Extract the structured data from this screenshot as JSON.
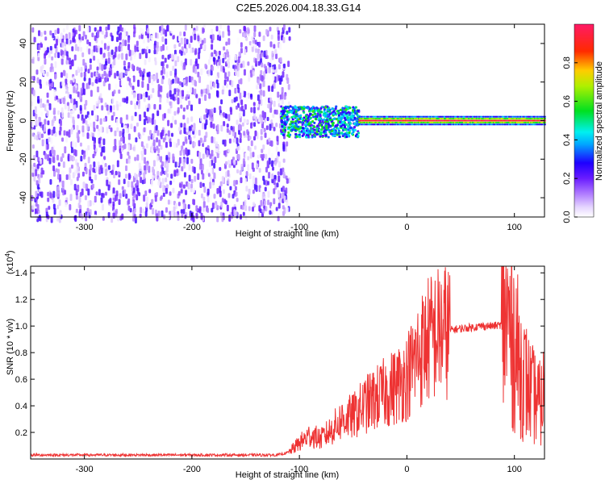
{
  "title": "C2E5.2026.004.18.33.G14",
  "chart_data": [
    {
      "type": "heatmap",
      "xlabel": "Height of straight line (km)",
      "ylabel": "Frequency (Hz)",
      "xlim": [
        -350,
        128
      ],
      "ylim": [
        -50,
        50
      ],
      "x_ticks": [
        -300,
        -200,
        -100,
        0,
        100
      ],
      "x_tick_labels": [
        "-300",
        "-200",
        "-100",
        "0",
        "100"
      ],
      "y_ticks": [
        -40,
        -20,
        0,
        20,
        40
      ],
      "y_tick_labels": [
        "-40",
        "-20",
        "0",
        "20",
        "40"
      ],
      "colorbar": {
        "label": "Normalized spectral amplitude",
        "range": [
          0,
          1
        ],
        "ticks": [
          0.0,
          0.2,
          0.4,
          0.6,
          0.8
        ],
        "tick_labels": [
          "0.0",
          "0.2",
          "0.4",
          "0.6",
          "0.8"
        ]
      },
      "regions": [
        {
          "name": "noise",
          "x_range": [
            -350,
            -110
          ],
          "f_range": [
            -50,
            50
          ],
          "amplitude_range": [
            0.0,
            0.25
          ]
        },
        {
          "name": "signal-onset",
          "x_range": [
            -118,
            -45
          ],
          "f_center": 0,
          "f_halfwidth": 8,
          "amplitude_range": [
            0.2,
            0.6
          ]
        },
        {
          "name": "signal-steady",
          "x_range": [
            -45,
            128
          ],
          "f_center": 0,
          "f_halfwidth": 2,
          "amplitude_range": [
            0.5,
            1.0
          ]
        }
      ]
    },
    {
      "type": "line",
      "xlabel": "Height of straight line (km)",
      "ylabel": "SNR (10 * v/v)",
      "scale_label": "(x10",
      "scale_exponent": "4",
      "scale_suffix": ")",
      "xlim": [
        -350,
        128
      ],
      "ylim": [
        0,
        1.45
      ],
      "x_ticks": [
        -300,
        -200,
        -100,
        0,
        100
      ],
      "x_tick_labels": [
        "-300",
        "-200",
        "-100",
        "0",
        "100"
      ],
      "y_ticks": [
        0.2,
        0.4,
        0.6,
        0.8,
        1.0,
        1.2,
        1.4
      ],
      "y_tick_labels": [
        "0.2",
        "0.4",
        "0.6",
        "0.8",
        "1.0",
        "1.2",
        "1.4"
      ],
      "color": "#ee3333",
      "series": [
        {
          "name": "SNR",
          "x": [
            -350,
            -300,
            -250,
            -200,
            -150,
            -120,
            -110,
            -100,
            -90,
            -80,
            -70,
            -60,
            -50,
            -40,
            -30,
            -20,
            -10,
            0,
            10,
            20,
            30,
            40,
            50,
            60,
            70,
            80,
            88,
            92,
            95,
            100,
            105,
            110,
            115,
            120,
            125,
            128
          ],
          "y": [
            0.03,
            0.03,
            0.03,
            0.03,
            0.03,
            0.03,
            0.05,
            0.12,
            0.18,
            0.15,
            0.22,
            0.3,
            0.32,
            0.4,
            0.45,
            0.5,
            0.55,
            0.62,
            0.78,
            0.9,
            0.95,
            0.97,
            0.98,
            0.99,
            1.0,
            1.0,
            1.01,
            1.1,
            1.0,
            0.9,
            0.7,
            0.6,
            0.5,
            0.45,
            0.4,
            0.55
          ]
        }
      ]
    }
  ]
}
